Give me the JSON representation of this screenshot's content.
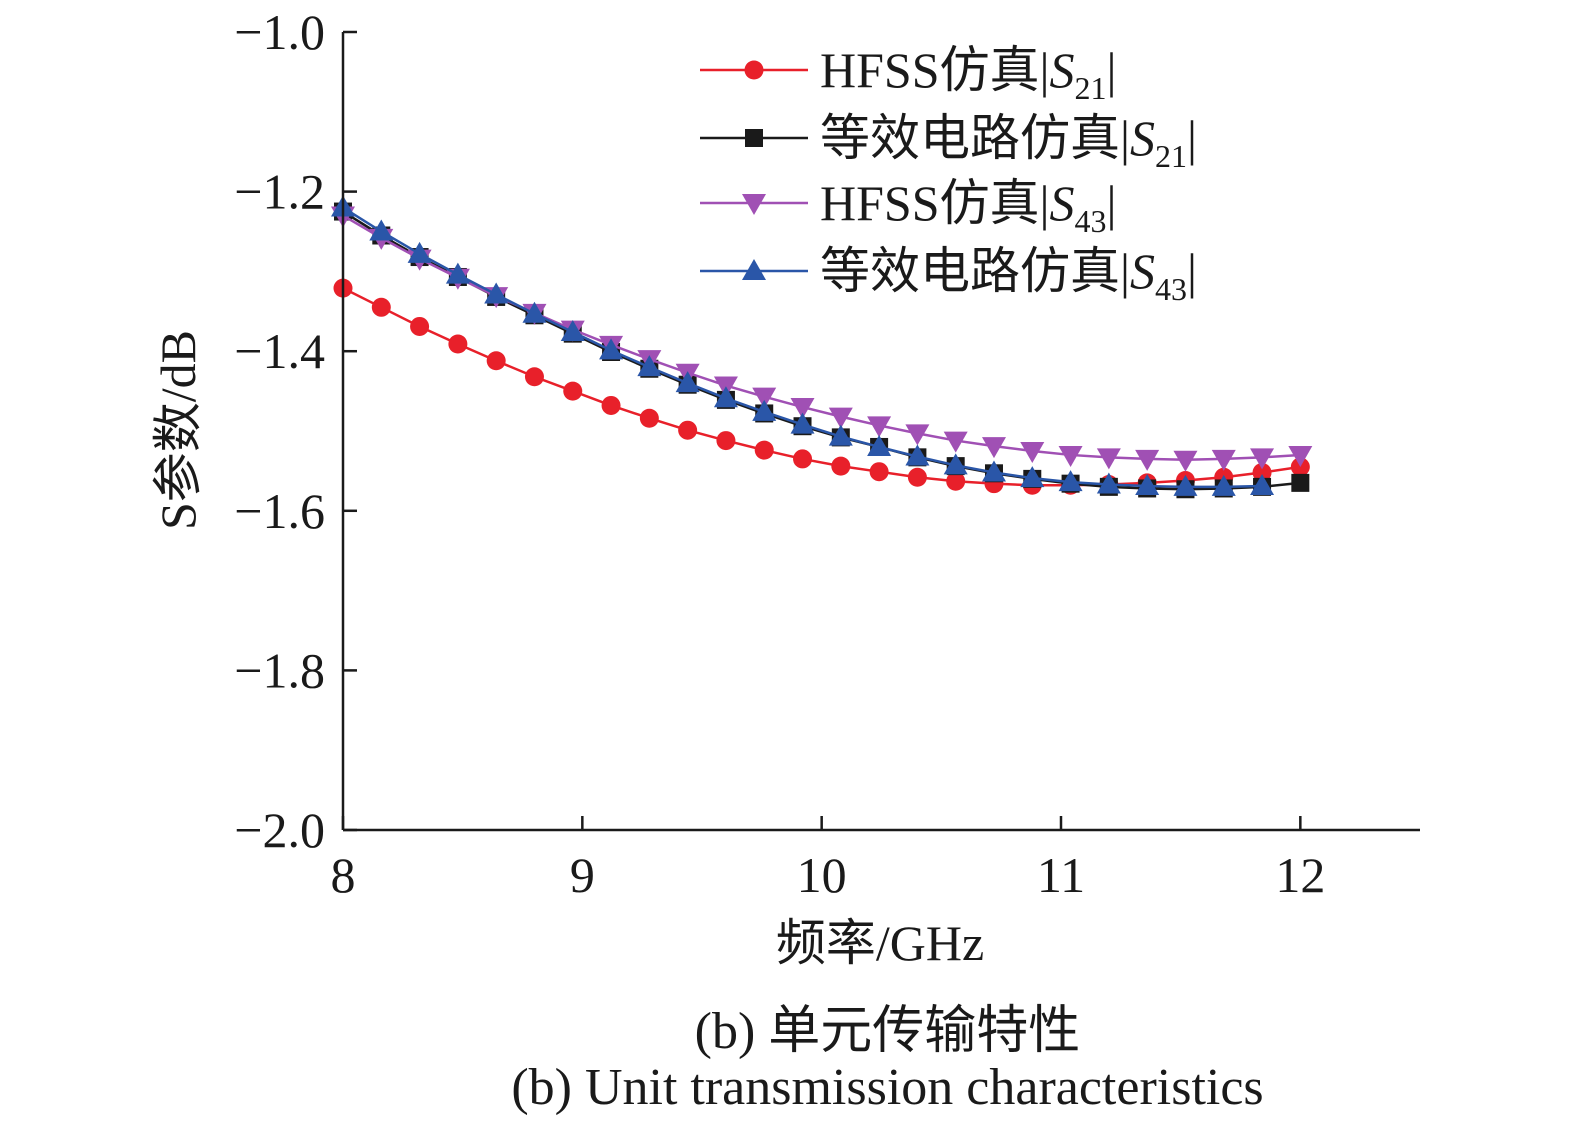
{
  "chart_data": {
    "type": "line",
    "xlabel": "频率/GHz",
    "ylabel": "S参数/dB",
    "xlim": [
      8,
      12.5
    ],
    "ylim": [
      -2.0,
      -1.0
    ],
    "xticks": [
      8,
      9,
      10,
      11,
      12
    ],
    "yticks": [
      -1.0,
      -1.2,
      -1.4,
      -1.6,
      -1.8,
      -2.0
    ],
    "ytick_labels": [
      "−1.0",
      "−1.2",
      "−1.4",
      "−1.6",
      "−1.8",
      "−2.0"
    ],
    "legend_position": "top-right",
    "series": [
      {
        "name": "HFSS仿真|S21|",
        "label_prefix": "HFSS仿真|",
        "label_symbol": "S",
        "label_sub": "21",
        "color": "#e8202a",
        "marker": "circle",
        "x": [
          8.0,
          8.16,
          8.32,
          8.48,
          8.64,
          8.8,
          8.96,
          9.12,
          9.28,
          9.44,
          9.6,
          9.76,
          9.92,
          10.08,
          10.24,
          10.4,
          10.56,
          10.72,
          10.88,
          11.04,
          11.2,
          11.36,
          11.52,
          11.68,
          11.84,
          12.0
        ],
        "y": [
          -1.321,
          -1.345,
          -1.369,
          -1.391,
          -1.412,
          -1.432,
          -1.45,
          -1.468,
          -1.484,
          -1.499,
          -1.512,
          -1.524,
          -1.535,
          -1.544,
          -1.551,
          -1.558,
          -1.563,
          -1.566,
          -1.568,
          -1.568,
          -1.567,
          -1.565,
          -1.562,
          -1.558,
          -1.552,
          -1.545
        ]
      },
      {
        "name": "等效电路仿真|S21|",
        "label_prefix": "等效电路仿真|",
        "label_symbol": "S",
        "label_sub": "21",
        "color": "#1a1a1a",
        "marker": "square",
        "x": [
          8.0,
          8.16,
          8.32,
          8.48,
          8.64,
          8.8,
          8.96,
          9.12,
          9.28,
          9.44,
          9.6,
          9.76,
          9.92,
          10.08,
          10.24,
          10.4,
          10.56,
          10.72,
          10.88,
          11.04,
          11.2,
          11.36,
          11.52,
          11.68,
          11.84,
          12.0
        ],
        "y": [
          -1.225,
          -1.255,
          -1.282,
          -1.307,
          -1.332,
          -1.355,
          -1.378,
          -1.401,
          -1.422,
          -1.442,
          -1.461,
          -1.478,
          -1.494,
          -1.508,
          -1.52,
          -1.533,
          -1.544,
          -1.553,
          -1.56,
          -1.566,
          -1.57,
          -1.572,
          -1.573,
          -1.572,
          -1.57,
          -1.565
        ]
      },
      {
        "name": "HFSS仿真|S43|",
        "label_prefix": "HFSS仿真|",
        "label_symbol": "S",
        "label_sub": "43",
        "color": "#a050b4",
        "marker": "triangle-down",
        "x": [
          8.0,
          8.16,
          8.32,
          8.48,
          8.64,
          8.8,
          8.96,
          9.12,
          9.28,
          9.44,
          9.6,
          9.76,
          9.92,
          10.08,
          10.24,
          10.4,
          10.56,
          10.72,
          10.88,
          11.04,
          11.2,
          11.36,
          11.52,
          11.68,
          11.84,
          12.0
        ],
        "y": [
          -1.23,
          -1.258,
          -1.284,
          -1.308,
          -1.331,
          -1.352,
          -1.373,
          -1.392,
          -1.41,
          -1.427,
          -1.443,
          -1.457,
          -1.47,
          -1.482,
          -1.493,
          -1.503,
          -1.512,
          -1.519,
          -1.525,
          -1.53,
          -1.533,
          -1.535,
          -1.536,
          -1.535,
          -1.533,
          -1.53
        ]
      },
      {
        "name": "等效电路仿真|S43|",
        "label_prefix": "等效电路仿真|",
        "label_symbol": "S",
        "label_sub": "43",
        "color": "#2a56a8",
        "marker": "triangle-up",
        "x": [
          8.0,
          8.16,
          8.32,
          8.48,
          8.64,
          8.8,
          8.96,
          9.12,
          9.28,
          9.44,
          9.6,
          9.76,
          9.92,
          10.08,
          10.24,
          10.4,
          10.56,
          10.72,
          10.88,
          11.04,
          11.2,
          11.36,
          11.52,
          11.68,
          11.84
        ],
        "y": [
          -1.22,
          -1.25,
          -1.278,
          -1.304,
          -1.329,
          -1.353,
          -1.376,
          -1.399,
          -1.42,
          -1.44,
          -1.459,
          -1.476,
          -1.492,
          -1.507,
          -1.52,
          -1.532,
          -1.543,
          -1.552,
          -1.559,
          -1.564,
          -1.567,
          -1.569,
          -1.57,
          -1.57,
          -1.569
        ]
      }
    ]
  },
  "captions": {
    "zh": "(b) 单元传输特性",
    "en": "(b) Unit transmission characteristics"
  }
}
